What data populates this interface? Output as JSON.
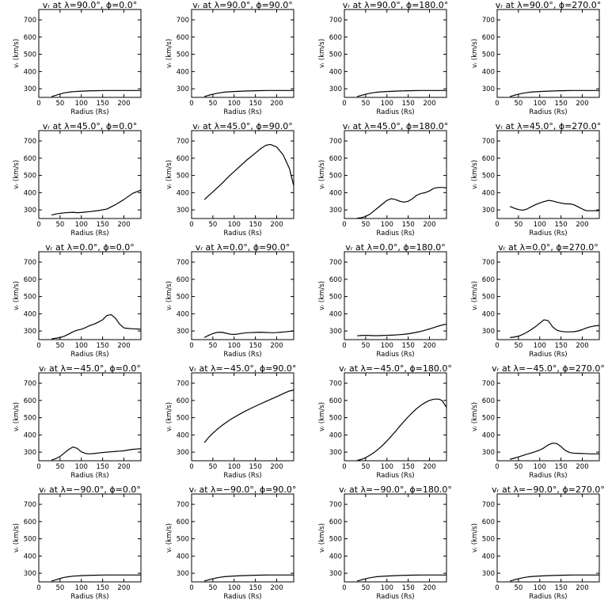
{
  "figure": {
    "background": "#ffffff",
    "line_color": "#000000",
    "shared_axes": {
      "xlabel": "Radius (Rs)",
      "ylabel": "vᵣ (km/s)",
      "xlim": [
        0,
        240
      ],
      "ylim": [
        250,
        760
      ],
      "xticks": [
        0,
        50,
        100,
        150,
        200
      ],
      "yticks": [
        300,
        400,
        500,
        600,
        700
      ]
    }
  },
  "chart_data": [
    {
      "type": "line",
      "title": "vᵣ at λ=90.0°, ϕ=0.0°",
      "xlabel": "Radius (Rs)",
      "ylabel": "vᵣ (km/s)",
      "xlim": [
        0,
        240
      ],
      "ylim": [
        250,
        760
      ],
      "x": [
        30,
        40,
        50,
        60,
        70,
        80,
        100,
        120,
        140,
        160,
        180,
        200,
        220,
        240
      ],
      "y": [
        255,
        262,
        270,
        276,
        280,
        283,
        286,
        288,
        289,
        290,
        290,
        290,
        290,
        290
      ]
    },
    {
      "type": "line",
      "title": "vᵣ at λ=90.0°, ϕ=90.0°",
      "xlabel": "Radius (Rs)",
      "ylabel": "vᵣ (km/s)",
      "xlim": [
        0,
        240
      ],
      "ylim": [
        250,
        760
      ],
      "x": [
        30,
        40,
        50,
        60,
        70,
        80,
        100,
        120,
        140,
        160,
        180,
        200,
        220,
        240
      ],
      "y": [
        255,
        262,
        268,
        274,
        278,
        281,
        284,
        286,
        288,
        289,
        290,
        290,
        290,
        290
      ]
    },
    {
      "type": "line",
      "title": "vᵣ at λ=90.0°, ϕ=180.0°",
      "xlabel": "Radius (Rs)",
      "ylabel": "vᵣ (km/s)",
      "xlim": [
        0,
        240
      ],
      "ylim": [
        250,
        760
      ],
      "x": [
        30,
        40,
        50,
        60,
        70,
        80,
        100,
        120,
        140,
        160,
        180,
        200,
        220,
        240
      ],
      "y": [
        255,
        262,
        268,
        274,
        278,
        281,
        284,
        286,
        288,
        289,
        290,
        290,
        290,
        290
      ]
    },
    {
      "type": "line",
      "title": "vᵣ at λ=90.0°, ϕ=270.0°",
      "xlabel": "Radius (Rs)",
      "ylabel": "vᵣ (km/s)",
      "xlim": [
        0,
        240
      ],
      "ylim": [
        250,
        760
      ],
      "x": [
        30,
        40,
        50,
        60,
        70,
        80,
        100,
        120,
        140,
        160,
        180,
        200,
        220,
        240
      ],
      "y": [
        255,
        262,
        268,
        274,
        278,
        281,
        284,
        286,
        288,
        289,
        290,
        290,
        290,
        290
      ]
    },
    {
      "type": "line",
      "title": "vᵣ at λ=45.0°, ϕ=0.0°",
      "xlabel": "Radius (Rs)",
      "ylabel": "vᵣ (km/s)",
      "xlim": [
        0,
        240
      ],
      "ylim": [
        250,
        760
      ],
      "x": [
        30,
        40,
        50,
        60,
        80,
        90,
        100,
        120,
        140,
        160,
        180,
        200,
        220,
        240
      ],
      "y": [
        270,
        276,
        280,
        283,
        286,
        284,
        285,
        290,
        296,
        305,
        330,
        360,
        395,
        415
      ]
    },
    {
      "type": "line",
      "title": "vᵣ at λ=45.0°, ϕ=90.0°",
      "xlabel": "Radius (Rs)",
      "ylabel": "vᵣ (km/s)",
      "xlim": [
        0,
        240
      ],
      "ylim": [
        250,
        760
      ],
      "x": [
        30,
        50,
        70,
        90,
        110,
        130,
        150,
        165,
        175,
        185,
        200,
        215,
        230,
        240
      ],
      "y": [
        360,
        405,
        450,
        500,
        545,
        590,
        630,
        660,
        675,
        680,
        665,
        620,
        540,
        440
      ]
    },
    {
      "type": "line",
      "title": "vᵣ at λ=45.0°, ϕ=180.0°",
      "xlabel": "Radius (Rs)",
      "ylabel": "vᵣ (km/s)",
      "xlim": [
        0,
        240
      ],
      "ylim": [
        250,
        760
      ],
      "x": [
        30,
        40,
        50,
        60,
        70,
        80,
        90,
        100,
        110,
        120,
        130,
        140,
        150,
        160,
        170,
        180,
        190,
        200,
        210,
        220,
        230,
        240
      ],
      "y": [
        252,
        255,
        262,
        275,
        295,
        315,
        335,
        355,
        365,
        360,
        350,
        345,
        350,
        365,
        385,
        395,
        400,
        410,
        425,
        430,
        430,
        428
      ]
    },
    {
      "type": "line",
      "title": "vᵣ at λ=45.0°, ϕ=270.0°",
      "xlabel": "Radius (Rs)",
      "ylabel": "vᵣ (km/s)",
      "xlim": [
        0,
        240
      ],
      "ylim": [
        250,
        760
      ],
      "x": [
        30,
        40,
        50,
        60,
        70,
        80,
        90,
        100,
        110,
        120,
        130,
        140,
        150,
        160,
        170,
        180,
        190,
        200,
        210,
        220,
        230,
        240
      ],
      "y": [
        320,
        310,
        302,
        298,
        305,
        318,
        330,
        340,
        348,
        355,
        352,
        345,
        340,
        335,
        335,
        330,
        318,
        305,
        295,
        295,
        295,
        295
      ]
    },
    {
      "type": "line",
      "title": "vᵣ at λ=0.0°, ϕ=0.0°",
      "xlabel": "Radius (Rs)",
      "ylabel": "vᵣ (km/s)",
      "xlim": [
        0,
        240
      ],
      "ylim": [
        250,
        760
      ],
      "x": [
        30,
        40,
        50,
        60,
        70,
        80,
        90,
        100,
        110,
        120,
        130,
        140,
        150,
        160,
        170,
        180,
        190,
        200,
        210,
        220,
        230,
        240
      ],
      "y": [
        255,
        258,
        262,
        270,
        282,
        295,
        305,
        310,
        320,
        332,
        340,
        352,
        365,
        390,
        395,
        375,
        340,
        318,
        315,
        313,
        312,
        310
      ]
    },
    {
      "type": "line",
      "title": "vᵣ at λ=0.0°, ϕ=90.0°",
      "xlabel": "Radius (Rs)",
      "ylabel": "vᵣ (km/s)",
      "xlim": [
        0,
        240
      ],
      "ylim": [
        250,
        760
      ],
      "x": [
        30,
        40,
        50,
        60,
        70,
        80,
        90,
        100,
        110,
        120,
        130,
        140,
        150,
        160,
        170,
        180,
        190,
        200,
        210,
        220,
        230,
        240
      ],
      "y": [
        262,
        275,
        285,
        292,
        293,
        288,
        282,
        280,
        283,
        287,
        290,
        291,
        292,
        293,
        292,
        291,
        290,
        291,
        293,
        295,
        298,
        300
      ]
    },
    {
      "type": "line",
      "title": "vᵣ at λ=0.0°, ϕ=180.0°",
      "xlabel": "Radius (Rs)",
      "ylabel": "vᵣ (km/s)",
      "xlim": [
        0,
        240
      ],
      "ylim": [
        250,
        760
      ],
      "x": [
        30,
        40,
        50,
        60,
        70,
        80,
        90,
        100,
        110,
        120,
        130,
        140,
        150,
        160,
        170,
        180,
        190,
        200,
        210,
        220,
        230,
        240
      ],
      "y": [
        272,
        274,
        275,
        274,
        273,
        273,
        274,
        275,
        276,
        277,
        279,
        281,
        284,
        288,
        293,
        298,
        305,
        312,
        320,
        328,
        335,
        340
      ]
    },
    {
      "type": "line",
      "title": "vᵣ at λ=0.0°, ϕ=270.0°",
      "xlabel": "Radius (Rs)",
      "ylabel": "vᵣ (km/s)",
      "xlim": [
        0,
        240
      ],
      "ylim": [
        250,
        760
      ],
      "x": [
        30,
        40,
        50,
        60,
        70,
        80,
        90,
        100,
        110,
        120,
        130,
        140,
        150,
        160,
        170,
        180,
        190,
        200,
        210,
        220,
        230,
        240
      ],
      "y": [
        262,
        265,
        270,
        280,
        293,
        308,
        325,
        345,
        365,
        360,
        325,
        305,
        298,
        295,
        295,
        296,
        300,
        308,
        318,
        325,
        330,
        332
      ]
    },
    {
      "type": "line",
      "title": "vᵣ at λ=−45.0°, ϕ=0.0°",
      "xlabel": "Radius (Rs)",
      "ylabel": "vᵣ (km/s)",
      "xlim": [
        0,
        240
      ],
      "ylim": [
        250,
        760
      ],
      "x": [
        30,
        40,
        50,
        60,
        70,
        80,
        90,
        100,
        110,
        120,
        130,
        140,
        150,
        160,
        170,
        180,
        190,
        200,
        210,
        220,
        230,
        240
      ],
      "y": [
        255,
        262,
        275,
        295,
        315,
        330,
        322,
        302,
        292,
        290,
        292,
        295,
        298,
        300,
        302,
        304,
        306,
        308,
        312,
        316,
        318,
        320
      ]
    },
    {
      "type": "line",
      "title": "vᵣ at λ=−45.0°, ϕ=90.0°",
      "xlabel": "Radius (Rs)",
      "ylabel": "vᵣ (km/s)",
      "xlim": [
        0,
        240
      ],
      "ylim": [
        250,
        760
      ],
      "x": [
        30,
        40,
        50,
        60,
        70,
        80,
        90,
        100,
        120,
        140,
        160,
        180,
        200,
        220,
        230,
        240
      ],
      "y": [
        355,
        385,
        410,
        432,
        452,
        470,
        487,
        502,
        530,
        555,
        578,
        600,
        622,
        645,
        655,
        660
      ]
    },
    {
      "type": "line",
      "title": "vᵣ at λ=−45.0°, ϕ=180.0°",
      "xlabel": "Radius (Rs)",
      "ylabel": "vᵣ (km/s)",
      "xlim": [
        0,
        240
      ],
      "ylim": [
        250,
        760
      ],
      "x": [
        30,
        40,
        50,
        60,
        70,
        80,
        90,
        100,
        110,
        120,
        130,
        140,
        150,
        160,
        170,
        180,
        190,
        200,
        210,
        220,
        225,
        230,
        240
      ],
      "y": [
        252,
        258,
        268,
        282,
        298,
        318,
        340,
        365,
        392,
        420,
        450,
        478,
        505,
        530,
        553,
        572,
        588,
        600,
        607,
        608,
        605,
        598,
        560
      ]
    },
    {
      "type": "line",
      "title": "vᵣ at λ=−45.0°, ϕ=270.0°",
      "xlabel": "Radius (Rs)",
      "ylabel": "vᵣ (km/s)",
      "xlim": [
        0,
        240
      ],
      "ylim": [
        250,
        760
      ],
      "x": [
        30,
        40,
        50,
        60,
        70,
        80,
        90,
        100,
        110,
        120,
        130,
        140,
        150,
        160,
        170,
        180,
        190,
        200,
        210,
        220,
        230,
        240
      ],
      "y": [
        258,
        265,
        272,
        280,
        288,
        295,
        303,
        312,
        325,
        342,
        352,
        350,
        332,
        310,
        298,
        294,
        293,
        292,
        291,
        290,
        290,
        290
      ]
    },
    {
      "type": "line",
      "title": "vᵣ at λ=−90.0°, ϕ=0.0°",
      "xlabel": "Radius (Rs)",
      "ylabel": "vᵣ (km/s)",
      "xlim": [
        0,
        240
      ],
      "ylim": [
        250,
        760
      ],
      "x": [
        30,
        40,
        50,
        60,
        70,
        80,
        100,
        120,
        140,
        160,
        180,
        200,
        220,
        240
      ],
      "y": [
        255,
        262,
        270,
        276,
        280,
        283,
        286,
        288,
        289,
        290,
        290,
        290,
        290,
        290
      ]
    },
    {
      "type": "line",
      "title": "vᵣ at λ=−90.0°, ϕ=90.0°",
      "xlabel": "Radius (Rs)",
      "ylabel": "vᵣ (km/s)",
      "xlim": [
        0,
        240
      ],
      "ylim": [
        250,
        760
      ],
      "x": [
        30,
        40,
        50,
        60,
        70,
        80,
        100,
        120,
        140,
        160,
        180,
        200,
        220,
        240
      ],
      "y": [
        255,
        262,
        268,
        274,
        278,
        281,
        284,
        286,
        288,
        289,
        290,
        290,
        290,
        290
      ]
    },
    {
      "type": "line",
      "title": "vᵣ at λ=−90.0°, ϕ=180.0°",
      "xlabel": "Radius (Rs)",
      "ylabel": "vᵣ (km/s)",
      "xlim": [
        0,
        240
      ],
      "ylim": [
        250,
        760
      ],
      "x": [
        30,
        40,
        50,
        60,
        70,
        80,
        100,
        120,
        140,
        160,
        180,
        200,
        220,
        240
      ],
      "y": [
        255,
        262,
        268,
        274,
        278,
        281,
        284,
        286,
        288,
        289,
        290,
        290,
        290,
        290
      ]
    },
    {
      "type": "line",
      "title": "vᵣ at λ=−90.0°, ϕ=270.0°",
      "xlabel": "Radius (Rs)",
      "ylabel": "vᵣ (km/s)",
      "xlim": [
        0,
        240
      ],
      "ylim": [
        250,
        760
      ],
      "x": [
        30,
        40,
        50,
        60,
        70,
        80,
        100,
        120,
        140,
        160,
        180,
        200,
        220,
        240
      ],
      "y": [
        255,
        262,
        268,
        274,
        278,
        281,
        284,
        286,
        288,
        289,
        290,
        290,
        290,
        290
      ]
    }
  ]
}
